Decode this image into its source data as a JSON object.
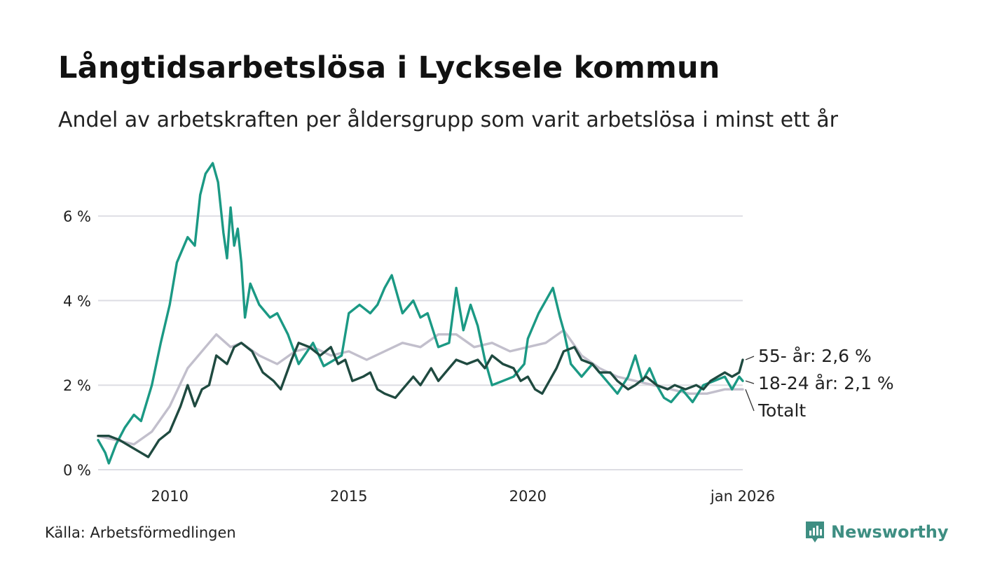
{
  "header": {
    "title": "Långtidsarbetslösa i Lycksele kommun",
    "subtitle": "Andel av arbetskraften per åldersgrupp som varit arbetslösa i minst ett år"
  },
  "footer": {
    "source": "Källa: Arbetsförmedlingen",
    "brand": "Newsworthy"
  },
  "colors": {
    "youth": "#1b9984",
    "senior": "#1f4a40",
    "total": "#c2bfcc",
    "grid": "#dddde3",
    "brand": "#3e8e82"
  },
  "chart_data": {
    "type": "line",
    "title": "Långtidsarbetslösa i Lycksele kommun",
    "subtitle": "Andel av arbetskraften per åldersgrupp som varit arbetslösa i minst ett år",
    "x_unit": "decimal year",
    "xlim": [
      2008.0,
      2026.0
    ],
    "ylim": [
      0,
      7.5
    ],
    "y_ticks": [
      0,
      2,
      4,
      6
    ],
    "y_tick_labels": [
      "0 %",
      "2 %",
      "4 %",
      "6 %"
    ],
    "x_ticks": [
      2010,
      2015,
      2020,
      2026.0
    ],
    "x_tick_labels": [
      "2010",
      "2015",
      "2020",
      "jan 2026"
    ],
    "grid": "horizontal",
    "series": [
      {
        "name": "Totalt",
        "end_label": "Totalt",
        "color": "#c2bfcc",
        "points": [
          [
            2008.0,
            0.8
          ],
          [
            2008.5,
            0.7
          ],
          [
            2009.0,
            0.6
          ],
          [
            2009.5,
            0.9
          ],
          [
            2010.0,
            1.5
          ],
          [
            2010.5,
            2.4
          ],
          [
            2011.0,
            2.9
          ],
          [
            2011.3,
            3.2
          ],
          [
            2011.7,
            2.9
          ],
          [
            2012.0,
            3.0
          ],
          [
            2012.5,
            2.7
          ],
          [
            2013.0,
            2.5
          ],
          [
            2013.5,
            2.8
          ],
          [
            2014.0,
            2.9
          ],
          [
            2014.5,
            2.7
          ],
          [
            2015.0,
            2.8
          ],
          [
            2015.5,
            2.6
          ],
          [
            2016.0,
            2.8
          ],
          [
            2016.5,
            3.0
          ],
          [
            2017.0,
            2.9
          ],
          [
            2017.5,
            3.2
          ],
          [
            2018.0,
            3.2
          ],
          [
            2018.5,
            2.9
          ],
          [
            2019.0,
            3.0
          ],
          [
            2019.5,
            2.8
          ],
          [
            2020.0,
            2.9
          ],
          [
            2020.5,
            3.0
          ],
          [
            2021.0,
            3.3
          ],
          [
            2021.5,
            2.7
          ],
          [
            2022.0,
            2.4
          ],
          [
            2022.5,
            2.2
          ],
          [
            2023.0,
            2.1
          ],
          [
            2023.5,
            2.0
          ],
          [
            2024.0,
            1.9
          ],
          [
            2024.5,
            1.8
          ],
          [
            2025.0,
            1.8
          ],
          [
            2025.5,
            1.9
          ],
          [
            2026.0,
            1.9
          ]
        ]
      },
      {
        "name": "18-24 år",
        "end_label": "18-24 år: 2,1 %",
        "color": "#1b9984",
        "points": [
          [
            2008.0,
            0.7
          ],
          [
            2008.2,
            0.4
          ],
          [
            2008.3,
            0.15
          ],
          [
            2008.5,
            0.6
          ],
          [
            2008.75,
            1.0
          ],
          [
            2009.0,
            1.3
          ],
          [
            2009.2,
            1.15
          ],
          [
            2009.5,
            2.0
          ],
          [
            2009.75,
            3.0
          ],
          [
            2010.0,
            3.9
          ],
          [
            2010.2,
            4.9
          ],
          [
            2010.5,
            5.5
          ],
          [
            2010.7,
            5.3
          ],
          [
            2010.85,
            6.5
          ],
          [
            2011.0,
            7.0
          ],
          [
            2011.2,
            7.25
          ],
          [
            2011.35,
            6.8
          ],
          [
            2011.5,
            5.6
          ],
          [
            2011.6,
            5.0
          ],
          [
            2011.7,
            6.2
          ],
          [
            2011.8,
            5.3
          ],
          [
            2011.9,
            5.7
          ],
          [
            2012.0,
            4.9
          ],
          [
            2012.1,
            3.6
          ],
          [
            2012.25,
            4.4
          ],
          [
            2012.5,
            3.9
          ],
          [
            2012.8,
            3.6
          ],
          [
            2013.0,
            3.7
          ],
          [
            2013.3,
            3.2
          ],
          [
            2013.6,
            2.5
          ],
          [
            2014.0,
            3.0
          ],
          [
            2014.3,
            2.45
          ],
          [
            2014.6,
            2.6
          ],
          [
            2014.8,
            2.7
          ],
          [
            2015.0,
            3.7
          ],
          [
            2015.3,
            3.9
          ],
          [
            2015.6,
            3.7
          ],
          [
            2015.8,
            3.9
          ],
          [
            2016.0,
            4.3
          ],
          [
            2016.2,
            4.6
          ],
          [
            2016.5,
            3.7
          ],
          [
            2016.8,
            4.0
          ],
          [
            2017.0,
            3.6
          ],
          [
            2017.2,
            3.7
          ],
          [
            2017.5,
            2.9
          ],
          [
            2017.8,
            3.0
          ],
          [
            2018.0,
            4.3
          ],
          [
            2018.2,
            3.3
          ],
          [
            2018.4,
            3.9
          ],
          [
            2018.6,
            3.4
          ],
          [
            2018.8,
            2.6
          ],
          [
            2019.0,
            2.0
          ],
          [
            2019.3,
            2.1
          ],
          [
            2019.6,
            2.2
          ],
          [
            2019.9,
            2.5
          ],
          [
            2020.0,
            3.1
          ],
          [
            2020.3,
            3.7
          ],
          [
            2020.5,
            4.0
          ],
          [
            2020.7,
            4.3
          ],
          [
            2020.9,
            3.6
          ],
          [
            2021.0,
            3.3
          ],
          [
            2021.2,
            2.5
          ],
          [
            2021.5,
            2.2
          ],
          [
            2021.8,
            2.5
          ],
          [
            2022.0,
            2.3
          ],
          [
            2022.3,
            2.0
          ],
          [
            2022.5,
            1.8
          ],
          [
            2022.8,
            2.2
          ],
          [
            2023.0,
            2.7
          ],
          [
            2023.2,
            2.1
          ],
          [
            2023.4,
            2.4
          ],
          [
            2023.6,
            2.0
          ],
          [
            2023.8,
            1.7
          ],
          [
            2024.0,
            1.6
          ],
          [
            2024.3,
            1.9
          ],
          [
            2024.6,
            1.6
          ],
          [
            2024.9,
            2.0
          ],
          [
            2025.2,
            2.1
          ],
          [
            2025.5,
            2.2
          ],
          [
            2025.7,
            1.9
          ],
          [
            2025.9,
            2.2
          ],
          [
            2026.0,
            2.1
          ]
        ]
      },
      {
        "name": "55- år",
        "end_label": "55- år: 2,6 %",
        "color": "#1f4a40",
        "points": [
          [
            2008.0,
            0.8
          ],
          [
            2008.3,
            0.8
          ],
          [
            2008.6,
            0.7
          ],
          [
            2008.9,
            0.55
          ],
          [
            2009.2,
            0.4
          ],
          [
            2009.4,
            0.3
          ],
          [
            2009.7,
            0.7
          ],
          [
            2010.0,
            0.9
          ],
          [
            2010.3,
            1.5
          ],
          [
            2010.5,
            2.0
          ],
          [
            2010.7,
            1.5
          ],
          [
            2010.9,
            1.9
          ],
          [
            2011.1,
            2.0
          ],
          [
            2011.3,
            2.7
          ],
          [
            2011.6,
            2.5
          ],
          [
            2011.8,
            2.9
          ],
          [
            2012.0,
            3.0
          ],
          [
            2012.3,
            2.8
          ],
          [
            2012.6,
            2.3
          ],
          [
            2012.9,
            2.1
          ],
          [
            2013.1,
            1.9
          ],
          [
            2013.4,
            2.6
          ],
          [
            2013.6,
            3.0
          ],
          [
            2013.9,
            2.9
          ],
          [
            2014.2,
            2.7
          ],
          [
            2014.5,
            2.9
          ],
          [
            2014.7,
            2.5
          ],
          [
            2014.9,
            2.6
          ],
          [
            2015.1,
            2.1
          ],
          [
            2015.4,
            2.2
          ],
          [
            2015.6,
            2.3
          ],
          [
            2015.8,
            1.9
          ],
          [
            2016.0,
            1.8
          ],
          [
            2016.3,
            1.7
          ],
          [
            2016.5,
            1.9
          ],
          [
            2016.8,
            2.2
          ],
          [
            2017.0,
            2.0
          ],
          [
            2017.3,
            2.4
          ],
          [
            2017.5,
            2.1
          ],
          [
            2017.8,
            2.4
          ],
          [
            2018.0,
            2.6
          ],
          [
            2018.3,
            2.5
          ],
          [
            2018.6,
            2.6
          ],
          [
            2018.8,
            2.4
          ],
          [
            2019.0,
            2.7
          ],
          [
            2019.3,
            2.5
          ],
          [
            2019.6,
            2.4
          ],
          [
            2019.8,
            2.1
          ],
          [
            2020.0,
            2.2
          ],
          [
            2020.2,
            1.9
          ],
          [
            2020.4,
            1.8
          ],
          [
            2020.6,
            2.1
          ],
          [
            2020.8,
            2.4
          ],
          [
            2021.0,
            2.8
          ],
          [
            2021.3,
            2.9
          ],
          [
            2021.5,
            2.6
          ],
          [
            2021.8,
            2.5
          ],
          [
            2022.0,
            2.3
          ],
          [
            2022.3,
            2.3
          ],
          [
            2022.5,
            2.1
          ],
          [
            2022.8,
            1.9
          ],
          [
            2023.0,
            2.0
          ],
          [
            2023.3,
            2.2
          ],
          [
            2023.6,
            2.0
          ],
          [
            2023.9,
            1.9
          ],
          [
            2024.1,
            2.0
          ],
          [
            2024.4,
            1.9
          ],
          [
            2024.7,
            2.0
          ],
          [
            2024.9,
            1.9
          ],
          [
            2025.1,
            2.1
          ],
          [
            2025.3,
            2.2
          ],
          [
            2025.5,
            2.3
          ],
          [
            2025.7,
            2.2
          ],
          [
            2025.9,
            2.3
          ],
          [
            2026.0,
            2.6
          ]
        ]
      }
    ]
  }
}
